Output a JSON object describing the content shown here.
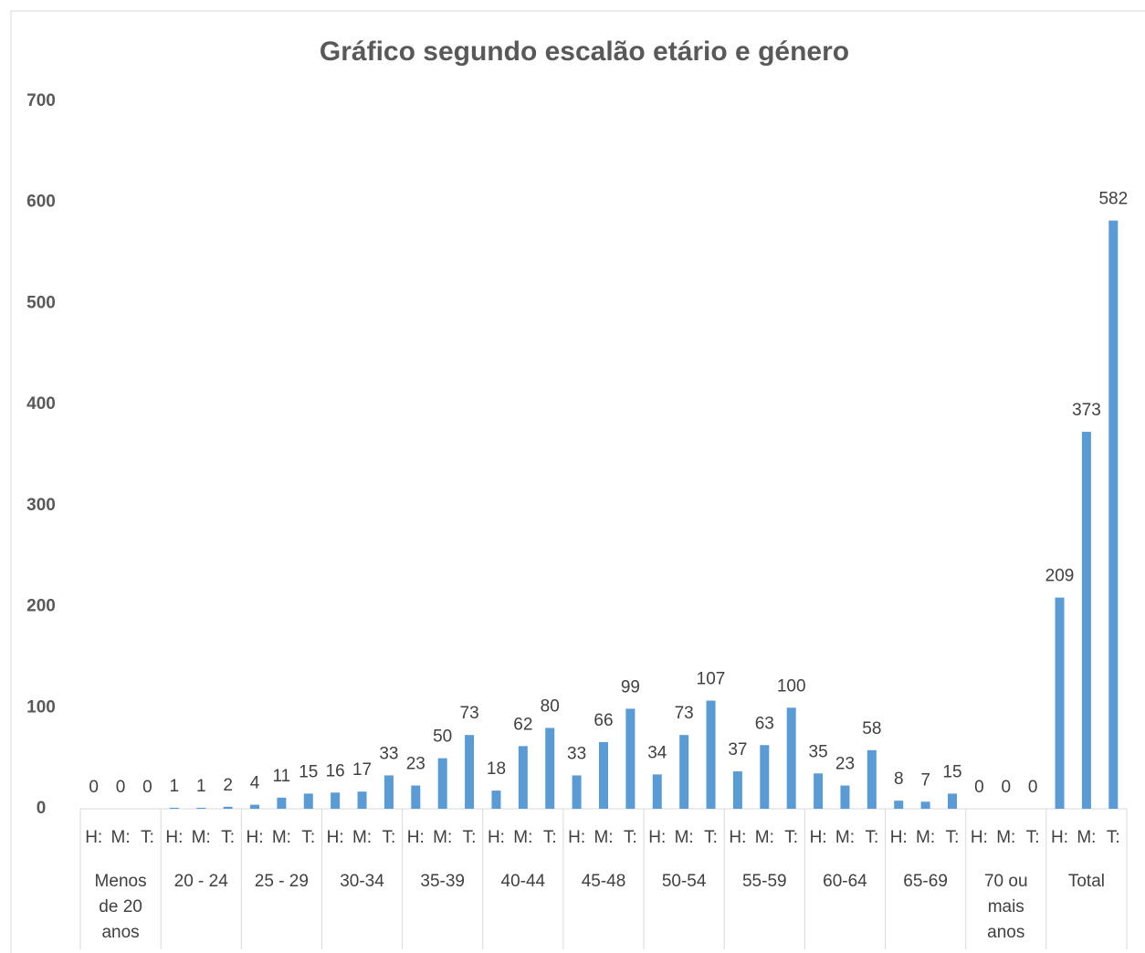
{
  "chart_data": {
    "type": "bar",
    "title": "Gráfico segundo escalão etário e género",
    "groups": [
      "Menos de 20 anos",
      "20 - 24",
      "25 - 29",
      "30-34",
      "35-39",
      "40-44",
      "45-48",
      "50-54",
      "55-59",
      "60-64",
      "65-69",
      "70 ou mais anos",
      "Total"
    ],
    "categories": [
      "H:",
      "M:",
      "T:",
      "H:",
      "M:",
      "T:",
      "H:",
      "M:",
      "T:",
      "H:",
      "M:",
      "T:",
      "H:",
      "M:",
      "T:",
      "H:",
      "M:",
      "T:",
      "H:",
      "M:",
      "T:",
      "H:",
      "M:",
      "T:",
      "H:",
      "M:",
      "T:",
      "H:",
      "M:",
      "T:",
      "H:",
      "M:",
      "T:",
      "H:",
      "M:",
      "T:",
      "H:",
      "M:",
      "T:"
    ],
    "values": [
      0,
      0,
      0,
      1,
      1,
      2,
      4,
      11,
      15,
      16,
      17,
      33,
      23,
      50,
      73,
      18,
      62,
      80,
      33,
      66,
      99,
      34,
      73,
      107,
      37,
      63,
      100,
      35,
      23,
      58,
      8,
      7,
      15,
      0,
      0,
      0,
      209,
      373,
      582
    ],
    "color": "#5b9bd5",
    "ylim": [
      0,
      700
    ],
    "yticks": [
      0,
      100,
      200,
      300,
      400,
      500,
      600,
      700
    ],
    "grid": false
  }
}
